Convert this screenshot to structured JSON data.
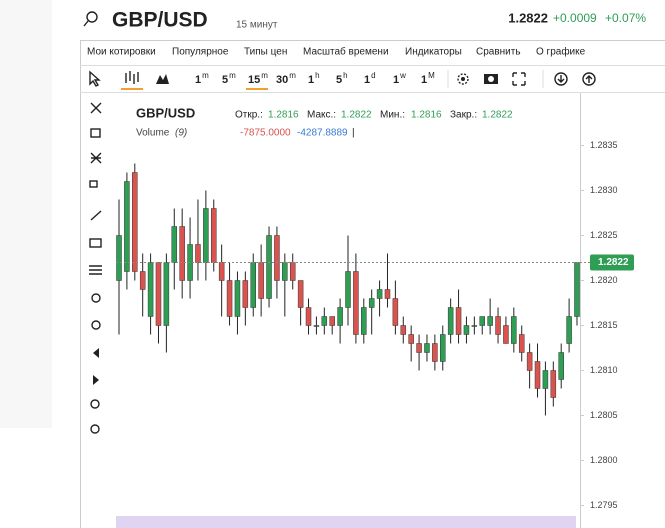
{
  "header": {
    "symbol": "GBP/USD",
    "interval": "15 минут",
    "price": "1.2822",
    "change": "+0.0009",
    "change_pct": "+0.07%"
  },
  "menu": [
    "Мои котировки",
    "Популярное",
    "Типы цен",
    "Масштаб времени",
    "Индикаторы",
    "Сравнить",
    "О графике"
  ],
  "intervals": [
    {
      "n": "1",
      "u": "m"
    },
    {
      "n": "5",
      "u": "m"
    },
    {
      "n": "15",
      "u": "m"
    },
    {
      "n": "30",
      "u": "m"
    },
    {
      "n": "1",
      "u": "h"
    },
    {
      "n": "5",
      "u": "h"
    },
    {
      "n": "1",
      "u": "d"
    },
    {
      "n": "1",
      "u": "w"
    },
    {
      "n": "1",
      "u": "M"
    }
  ],
  "legend": {
    "symbol": "GBP/USD",
    "open_label": "Откр.:",
    "open": "1.2816",
    "high_label": "Макс.:",
    "high": "1.2822",
    "low_label": "Мин.:",
    "low": "1.2816",
    "close_label": "Закр.:",
    "close": "1.2822",
    "volume_label": "Volume",
    "volume_param": "(9)",
    "volume_a": "-7875.0000",
    "volume_b": "-4287.8889",
    "cursor": "|"
  },
  "chart_data": {
    "type": "candlestick",
    "open": [
      1.282,
      1.2821,
      1.2832,
      1.2821,
      1.2816,
      1.2822,
      1.2815,
      1.2822,
      1.2826,
      1.282,
      1.2824,
      1.2822,
      1.2828,
      1.2822,
      1.282,
      1.2816,
      1.282,
      1.2817,
      1.2822,
      1.2818,
      1.2825,
      1.282,
      1.2822,
      1.282,
      1.2817,
      1.2815,
      1.2815,
      1.2816,
      1.2815,
      1.2817,
      1.2821,
      1.2814,
      1.2817,
      1.2818,
      1.2819,
      1.2818,
      1.2815,
      1.2814,
      1.2813,
      1.2812,
      1.2813,
      1.2811,
      1.2814,
      1.2817,
      1.2814,
      1.2815,
      1.2815,
      1.2815,
      1.2816,
      1.2815,
      1.2813,
      1.2814,
      1.2812,
      1.2811,
      1.2808,
      1.281,
      1.2809,
      1.2813,
      1.2816
    ],
    "high": [
      1.2829,
      1.2832,
      1.2833,
      1.2823,
      1.2823,
      1.2822,
      1.2823,
      1.2828,
      1.2828,
      1.2827,
      1.2829,
      1.283,
      1.2829,
      1.2824,
      1.2822,
      1.2821,
      1.2821,
      1.2823,
      1.2824,
      1.2826,
      1.2826,
      1.2823,
      1.2823,
      1.282,
      1.2818,
      1.2816,
      1.2817,
      1.2816,
      1.2818,
      1.2825,
      1.2823,
      1.2818,
      1.2819,
      1.282,
      1.2823,
      1.282,
      1.2816,
      1.2815,
      1.2814,
      1.2814,
      1.2814,
      1.2815,
      1.2818,
      1.2819,
      1.2816,
      1.2816,
      1.2816,
      1.2818,
      1.2817,
      1.2816,
      1.2817,
      1.2815,
      1.2813,
      1.2813,
      1.2811,
      1.2811,
      1.2813,
      1.2818,
      1.2822
    ],
    "low": [
      1.2814,
      1.2819,
      1.282,
      1.2816,
      1.2814,
      1.2813,
      1.2812,
      1.2819,
      1.2818,
      1.2818,
      1.282,
      1.282,
      1.2821,
      1.2816,
      1.2815,
      1.2814,
      1.2815,
      1.2816,
      1.2816,
      1.2817,
      1.2818,
      1.2816,
      1.2819,
      1.2815,
      1.2814,
      1.2814,
      1.2814,
      1.2814,
      1.2813,
      1.2815,
      1.2813,
      1.2813,
      1.2814,
      1.2816,
      1.2817,
      1.2814,
      1.2813,
      1.2811,
      1.281,
      1.2811,
      1.281,
      1.281,
      1.2813,
      1.2813,
      1.2813,
      1.2814,
      1.2814,
      1.2814,
      1.2813,
      1.2813,
      1.2812,
      1.2811,
      1.2808,
      1.2807,
      1.2805,
      1.2806,
      1.2808,
      1.2812,
      1.2815
    ],
    "close": [
      1.2825,
      1.2831,
      1.2821,
      1.2819,
      1.2822,
      1.2815,
      1.2822,
      1.2826,
      1.282,
      1.2824,
      1.2822,
      1.2828,
      1.2822,
      1.282,
      1.2816,
      1.282,
      1.2817,
      1.2822,
      1.2818,
      1.2825,
      1.282,
      1.2822,
      1.282,
      1.2817,
      1.2815,
      1.2815,
      1.2816,
      1.2815,
      1.2817,
      1.2821,
      1.2814,
      1.2817,
      1.2818,
      1.2819,
      1.2818,
      1.2815,
      1.2814,
      1.2813,
      1.2812,
      1.2813,
      1.2811,
      1.2814,
      1.2817,
      1.2814,
      1.2815,
      1.2815,
      1.2816,
      1.2816,
      1.2814,
      1.2813,
      1.2816,
      1.2812,
      1.281,
      1.2808,
      1.281,
      1.2807,
      1.2812,
      1.2816,
      1.2822
    ],
    "up_color": "#2f9e55",
    "down_color": "#d9534f",
    "ylim": [
      1.27925,
      1.28405
    ],
    "yticks": [
      1.2835,
      {
        "value": 1.283,
        "label": "1.2830"
      },
      1.2825,
      {
        "value": 1.282,
        "label": "1.2820"
      },
      1.2815,
      {
        "value": 1.281,
        "label": "1.2810"
      },
      1.2805,
      {
        "value": 1.28,
        "label": "1.2800"
      },
      1.2795
    ],
    "last_price": 1.2822
  }
}
